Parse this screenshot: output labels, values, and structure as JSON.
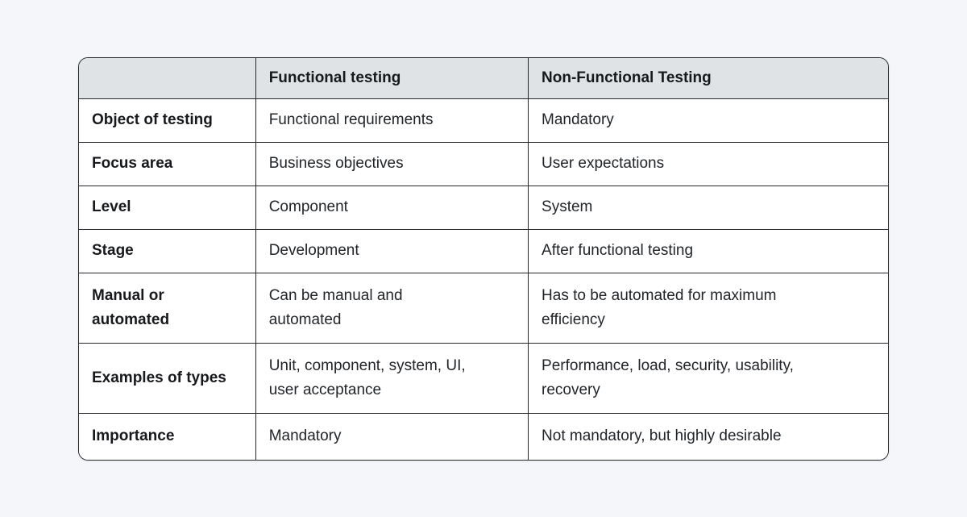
{
  "colors": {
    "page_background": "#f4f6f9",
    "header_background": "#e0e3e5",
    "border": "#26282b",
    "heading_text": "#17191d",
    "body_text": "#212529",
    "card_background": "#ffffff"
  },
  "table": {
    "columns": [
      "",
      "Functional testing",
      "Non-Functional Testing"
    ],
    "rows": [
      {
        "label": "Object of testing",
        "functional": "Functional requirements",
        "non_functional": "Mandatory"
      },
      {
        "label": "Focus area",
        "functional": "Business objectives",
        "non_functional": "User expectations"
      },
      {
        "label": "Level",
        "functional": "Component",
        "non_functional": "System"
      },
      {
        "label": "Stage",
        "functional": "Development",
        "non_functional": "After functional testing"
      },
      {
        "label": "Manual or automated",
        "functional": "Can be manual and automated",
        "non_functional": "Has to be automated for maximum efficiency"
      },
      {
        "label": "Examples of types",
        "functional": "Unit, component, system, UI, user acceptance",
        "non_functional": "Performance, load, security, usability, recovery"
      },
      {
        "label": "Importance",
        "functional": "Mandatory",
        "non_functional": "Not mandatory, but highly desirable"
      }
    ]
  }
}
